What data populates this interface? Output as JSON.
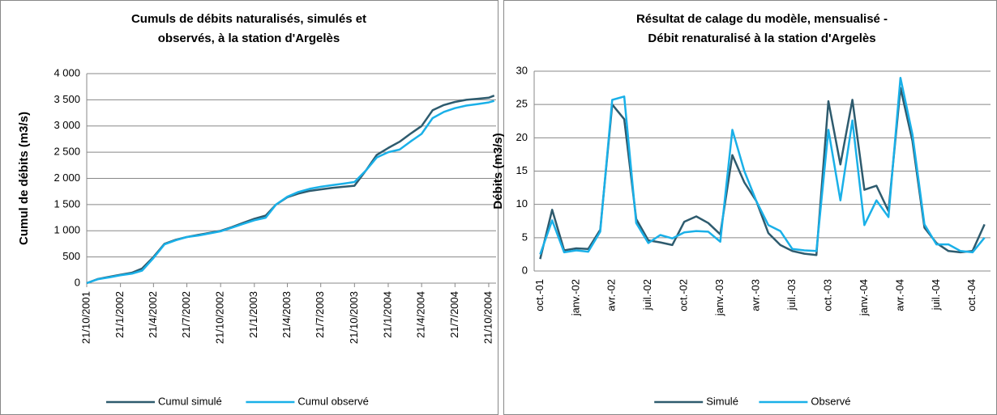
{
  "chart_data": [
    {
      "type": "line",
      "title": [
        "Cumuls de débits naturalisés, simulés et",
        "observés, à la station d'Argelès"
      ],
      "ylabel": "Cumul de débits (m3/s)",
      "x": [
        "21/10/2001",
        "21/11/2001",
        "21/12/2001",
        "21/1/2002",
        "21/2/2002",
        "21/3/2002",
        "21/4/2002",
        "21/5/2002",
        "21/6/2002",
        "21/7/2002",
        "21/8/2002",
        "21/9/2002",
        "21/10/2002",
        "21/11/2002",
        "21/12/2002",
        "21/1/2003",
        "21/2/2003",
        "21/3/2003",
        "21/4/2003",
        "21/5/2003",
        "21/6/2003",
        "21/7/2003",
        "21/8/2003",
        "21/9/2003",
        "21/10/2003",
        "21/11/2003",
        "21/12/2003",
        "21/1/2004",
        "21/2/2004",
        "21/3/2004",
        "21/4/2004",
        "21/5/2004",
        "21/6/2004",
        "21/7/2004",
        "21/8/2004",
        "21/9/2004",
        "21/10/2004",
        "5/11/2004"
      ],
      "series": [
        {
          "name": "Cumul simulé",
          "color": "#2e5b6e",
          "values": [
            0,
            80,
            120,
            160,
            200,
            280,
            500,
            750,
            830,
            880,
            920,
            960,
            1000,
            1070,
            1150,
            1230,
            1290,
            1500,
            1640,
            1710,
            1760,
            1790,
            1820,
            1840,
            1860,
            2150,
            2450,
            2580,
            2700,
            2850,
            3000,
            3300,
            3400,
            3460,
            3500,
            3520,
            3540,
            3580
          ]
        },
        {
          "name": "Cumul observé",
          "color": "#1ab0e8",
          "values": [
            0,
            75,
            110,
            150,
            180,
            240,
            480,
            740,
            820,
            880,
            910,
            950,
            990,
            1060,
            1130,
            1200,
            1250,
            1500,
            1650,
            1740,
            1800,
            1840,
            1870,
            1900,
            1930,
            2150,
            2400,
            2500,
            2550,
            2700,
            2850,
            3150,
            3270,
            3340,
            3390,
            3420,
            3450,
            3480
          ]
        }
      ],
      "xlim": [
        "21/10/2001",
        "10/11/2004"
      ],
      "xticks": [
        "21/10/2001",
        "21/1/2002",
        "21/4/2002",
        "21/7/2002",
        "21/10/2002",
        "21/1/2003",
        "21/4/2003",
        "21/7/2003",
        "21/10/2003",
        "21/1/2004",
        "21/4/2004",
        "21/7/2004",
        "21/10/2004"
      ],
      "ylim": [
        0,
        4000
      ],
      "yticks": [
        0,
        500,
        {
          "value": 1000,
          "label": "1 000"
        },
        {
          "value": 1500,
          "label": "1 500"
        },
        {
          "value": 2000,
          "label": "2 000"
        },
        {
          "value": 2500,
          "label": "2 500"
        },
        {
          "value": 3000,
          "label": "3 000"
        },
        {
          "value": 3500,
          "label": "3 500"
        },
        {
          "value": 4000,
          "label": "4 000"
        }
      ],
      "grid": true,
      "legend": "bottom"
    },
    {
      "type": "line",
      "title": [
        "Résultat de calage du modèle, mensualisé -",
        "Débit renaturalisé à la station d'Argelès"
      ],
      "ylabel": "Débits (m3/s)",
      "categories": [
        "oct.-01",
        null,
        null,
        "janv.-02",
        null,
        null,
        "avr.-02",
        null,
        null,
        "juil.-02",
        null,
        null,
        "oct.-02",
        null,
        null,
        "janv.-03",
        null,
        null,
        "avr.-03",
        null,
        null,
        "juil.-03",
        null,
        null,
        "oct.-03",
        null,
        null,
        "janv.-04",
        null,
        null,
        "avr.-04",
        null,
        null,
        "juil.-04",
        null,
        null,
        "oct.-04",
        null
      ],
      "series": [
        {
          "name": "Simulé",
          "color": "#2e5b6e",
          "values": [
            1.8,
            9.2,
            3.1,
            3.4,
            3.3,
            6.2,
            25,
            22.8,
            7.8,
            4.6,
            4.3,
            3.9,
            7.4,
            8.2,
            7.2,
            5.5,
            17.4,
            13.3,
            10.5,
            5.7,
            3.9,
            3.0,
            2.6,
            2.4,
            25.5,
            16.0,
            25.7,
            12.2,
            12.8,
            9.0,
            27.5,
            19.5,
            6.5,
            4.2,
            3.0,
            2.8,
            3.0,
            7.0
          ]
        },
        {
          "name": "Observé",
          "color": "#1ab0e8",
          "values": [
            2.5,
            7.6,
            2.8,
            3.1,
            2.9,
            5.9,
            25.7,
            26.2,
            7.2,
            4.2,
            5.4,
            4.9,
            5.8,
            6.0,
            5.9,
            4.4,
            21.2,
            15.0,
            10.5,
            6.9,
            6.0,
            3.3,
            3.1,
            3.0,
            21.2,
            10.6,
            22.6,
            6.9,
            10.6,
            8.1,
            29.0,
            20.5,
            7.0,
            4.0,
            4.0,
            3.0,
            2.8,
            5.0
          ]
        }
      ],
      "ylim": [
        0,
        30
      ],
      "yticks": [
        0,
        5,
        10,
        15,
        20,
        25,
        30
      ],
      "grid": true,
      "legend": "bottom"
    }
  ]
}
